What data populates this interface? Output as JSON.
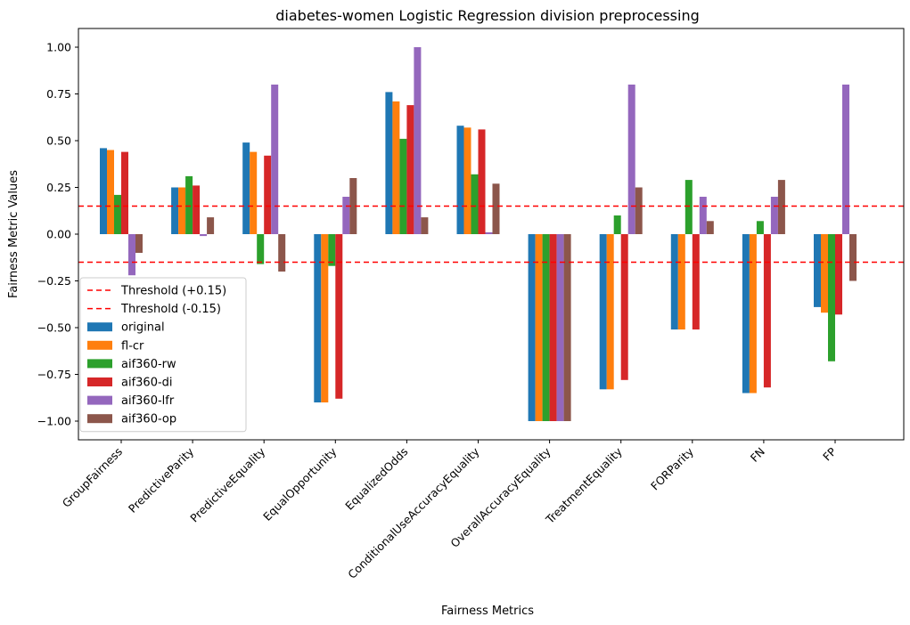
{
  "chart_data": {
    "type": "bar",
    "title": "diabetes-women Logistic Regression division preprocessing",
    "xlabel": "Fairness Metrics",
    "ylabel": "Fairness Metric Values",
    "ylim": [
      -1.1,
      1.1
    ],
    "yticks": [
      1.0,
      0.75,
      0.5,
      0.25,
      0.0,
      -0.25,
      -0.5,
      -0.75,
      -1.0
    ],
    "ytick_labels": [
      "1.00",
      "0.75",
      "0.50",
      "0.25",
      "0.00",
      "−0.25",
      "−0.50",
      "−0.75",
      "−1.00"
    ],
    "categories": [
      "GroupFairness",
      "PredictiveParity",
      "PredictiveEquality",
      "EqualOpportunity",
      "EqualizedOdds",
      "ConditionalUseAccuracyEquality",
      "OverallAccuracyEquality",
      "TreatmentEquality",
      "FORParity",
      "FN",
      "FP"
    ],
    "series": [
      {
        "name": "original",
        "color": "#1f77b4",
        "values": [
          0.46,
          0.25,
          0.49,
          -0.9,
          0.76,
          0.58,
          -1.0,
          -0.83,
          -0.51,
          -0.85,
          -0.39
        ]
      },
      {
        "name": "fl-cr",
        "color": "#ff7f0e",
        "values": [
          0.45,
          0.25,
          0.44,
          -0.9,
          0.71,
          0.57,
          -1.0,
          -0.83,
          -0.51,
          -0.85,
          -0.42
        ]
      },
      {
        "name": "aif360-rw",
        "color": "#2ca02c",
        "values": [
          0.21,
          0.31,
          -0.16,
          -0.17,
          0.51,
          0.32,
          -1.0,
          0.1,
          0.29,
          0.07,
          -0.68
        ]
      },
      {
        "name": "aif360-di",
        "color": "#d62728",
        "values": [
          0.44,
          0.26,
          0.42,
          -0.88,
          0.69,
          0.56,
          -1.0,
          -0.78,
          -0.51,
          -0.82,
          -0.43
        ]
      },
      {
        "name": "aif360-lfr",
        "color": "#9467bd",
        "values": [
          -0.22,
          -0.01,
          0.8,
          0.2,
          1.0,
          0.01,
          -1.0,
          0.8,
          0.2,
          0.2,
          0.8
        ]
      },
      {
        "name": "aif360-op",
        "color": "#8c564b",
        "values": [
          -0.1,
          0.09,
          -0.2,
          0.3,
          0.09,
          0.27,
          -1.0,
          0.25,
          0.07,
          0.29,
          -0.25
        ]
      }
    ],
    "thresholds": [
      {
        "name": "Threshold (+0.15)",
        "value": 0.15,
        "color": "#ff0000"
      },
      {
        "name": "Threshold (-0.15)",
        "value": -0.15,
        "color": "#ff0000"
      }
    ],
    "legend_position": "lower-left",
    "grid": false
  }
}
